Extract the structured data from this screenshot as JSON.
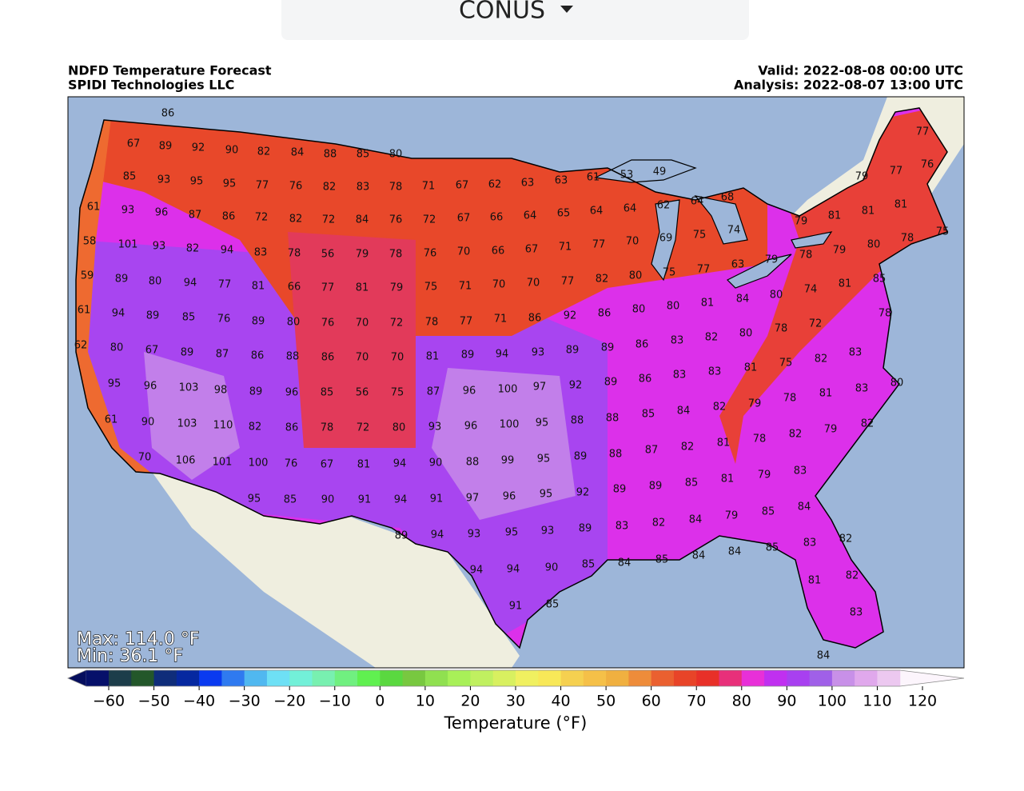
{
  "dropdown": {
    "label": "CONUS"
  },
  "header": {
    "title": "NDFD Temperature Forecast",
    "credit": "SPIDI Technologies LLC",
    "valid": "Valid: 2022-08-08 00:00 UTC",
    "analysis": "Analysis: 2022-08-07 13:00 UTC"
  },
  "map": {
    "max_text": "Max: 114.0 °F",
    "min_text": "Min: 36.1 °F",
    "labels": [
      86,
      67,
      89,
      92,
      90,
      82,
      84,
      88,
      85,
      80,
      85,
      93,
      95,
      95,
      77,
      76,
      82,
      83,
      78,
      71,
      67,
      62,
      63,
      63,
      61,
      53,
      49,
      79,
      77,
      77,
      76,
      61,
      93,
      96,
      87,
      86,
      72,
      82,
      72,
      84,
      76,
      72,
      67,
      66,
      64,
      65,
      64,
      64,
      62,
      64,
      68,
      79,
      81,
      81,
      81,
      58,
      101,
      93,
      82,
      94,
      83,
      78,
      56,
      79,
      78,
      76,
      70,
      66,
      67,
      71,
      77,
      70,
      69,
      75,
      74,
      80,
      78,
      75,
      78,
      79,
      59,
      89,
      80,
      94,
      77,
      81,
      66,
      77,
      81,
      79,
      75,
      71,
      70,
      70,
      77,
      82,
      80,
      75,
      77,
      63,
      79,
      85,
      61,
      94,
      89,
      85,
      76,
      89,
      80,
      76,
      70,
      72,
      78,
      77,
      71,
      86,
      92,
      86,
      80,
      80,
      81,
      84,
      80,
      74,
      81,
      78,
      62,
      80,
      67,
      89,
      87,
      86,
      88,
      86,
      70,
      70,
      81,
      89,
      94,
      93,
      89,
      89,
      86,
      83,
      82,
      80,
      78,
      72,
      83,
      95,
      96,
      103,
      98,
      89,
      96,
      85,
      56,
      75,
      87,
      96,
      100,
      97,
      92,
      89,
      86,
      83,
      83,
      81,
      75,
      82,
      80,
      81,
      78,
      83,
      61,
      90,
      103,
      110,
      82,
      86,
      78,
      72,
      80,
      93,
      96,
      100,
      95,
      88,
      88,
      85,
      84,
      82,
      79,
      82,
      79,
      82,
      70,
      106,
      101,
      100,
      76,
      67,
      81,
      94,
      90,
      88,
      99,
      95,
      89,
      88,
      87,
      82,
      81,
      78,
      79,
      83,
      95,
      85,
      90,
      91,
      94,
      91,
      97,
      96,
      95,
      92,
      89,
      89,
      85,
      81,
      85,
      84,
      79,
      84,
      82,
      83,
      89,
      89,
      94,
      93,
      95,
      93,
      83,
      82,
      84,
      84,
      85,
      85,
      84,
      85,
      90,
      94,
      94,
      81,
      82,
      91,
      85,
      83,
      84
    ]
  },
  "colorbar": {
    "label": "Temperature (°F)",
    "lim": [
      -65,
      115
    ],
    "step": 5,
    "under_color": "#060e5e",
    "over_color": "#fcf5fc",
    "colors": [
      "#06106a",
      "#1c3d4a",
      "#23572a",
      "#0f2d7a",
      "#0628a0",
      "#0a3af0",
      "#2f7af0",
      "#50b8f0",
      "#6ee0f5",
      "#72f0d8",
      "#78f0b0",
      "#70f080",
      "#60f050",
      "#5ad840",
      "#78c840",
      "#90e050",
      "#a8f058",
      "#c0f060",
      "#d8f060",
      "#f0f060",
      "#f8e858",
      "#f5d050",
      "#f5c048",
      "#f0b040",
      "#ee8c3a",
      "#ea6030",
      "#e84428",
      "#e83028",
      "#e8307a",
      "#e830d8",
      "#c030f0",
      "#a840f0",
      "#a060e8",
      "#c890e8",
      "#e0a8ec",
      "#ecc8f0"
    ],
    "ticks": [
      {
        "value": -60,
        "label": "−60"
      },
      {
        "value": -50,
        "label": "−50"
      },
      {
        "value": -40,
        "label": "−40"
      },
      {
        "value": -30,
        "label": "−30"
      },
      {
        "value": -20,
        "label": "−20"
      },
      {
        "value": -10,
        "label": "−10"
      },
      0,
      10,
      20,
      30,
      40,
      50,
      60,
      70,
      80,
      90,
      100,
      110,
      120
    ]
  }
}
